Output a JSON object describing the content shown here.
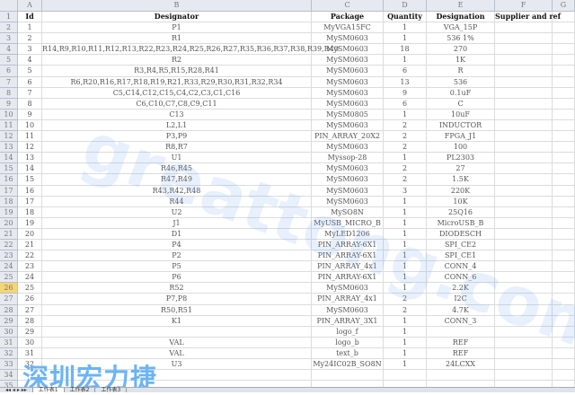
{
  "columns": [
    "A",
    "B",
    "C",
    "D",
    "E",
    "F",
    "G"
  ],
  "headers": [
    "Id",
    "Designator",
    "Package",
    "Quantity",
    "Designation",
    "Supplier and ref",
    ""
  ],
  "rows": [
    [
      "1",
      "P1",
      "MyVGA15FC",
      "1",
      "VGA_15P"
    ],
    [
      "2",
      "R1",
      "MySM0603",
      "1",
      "536 1%"
    ],
    [
      "3",
      "R14,R9,R10,R11,R12,R13,R22,R23,R24,R25,R26,R27,R35,R36,R37,R38,R39,R40",
      "MySM0603",
      "18",
      "270"
    ],
    [
      "4",
      "R2",
      "MySM0603",
      "1",
      "1K"
    ],
    [
      "5",
      "R3,R4,R5,R15,R28,R41",
      "MySM0603",
      "6",
      "R"
    ],
    [
      "6",
      "R6,R20,R16,R17,R18,R19,R21,R33,R29,R30,R31,R32,R34",
      "MySM0603",
      "13",
      "536"
    ],
    [
      "7",
      "C5,C14,C12,C15,C4,C2,C3,C1,C16",
      "MySM0603",
      "9",
      "0.1uF"
    ],
    [
      "8",
      "C6,C10,C7,C8,C9,C11",
      "MySM0603",
      "6",
      "C"
    ],
    [
      "9",
      "C13",
      "MySM0805",
      "1",
      "10uF"
    ],
    [
      "10",
      "L2,L1",
      "MySM0603",
      "2",
      "INDUCTOR"
    ],
    [
      "11",
      "P3,P9",
      "PIN_ARRAY_20X2",
      "2",
      "FPGA_J1"
    ],
    [
      "12",
      "R8,R7",
      "MySM0603",
      "2",
      "100"
    ],
    [
      "13",
      "U1",
      "Myssop-28",
      "1",
      "PL2303"
    ],
    [
      "14",
      "R46,R45",
      "MySM0603",
      "2",
      "27"
    ],
    [
      "15",
      "R47,R49",
      "MySM0603",
      "2",
      "1.5K"
    ],
    [
      "16",
      "R43,R42,R48",
      "MySM0603",
      "3",
      "220K"
    ],
    [
      "17",
      "R44",
      "MySM0603",
      "1",
      "10K"
    ],
    [
      "18",
      "U2",
      "MySO8N",
      "1",
      "25Q16"
    ],
    [
      "19",
      "J1",
      "MyUSB_MICRO_B",
      "1",
      "MicroUSB_B"
    ],
    [
      "20",
      "D1",
      "MyLED1206",
      "1",
      "DIODESCH"
    ],
    [
      "21",
      "P4",
      "PIN_ARRAY-6X1",
      "1",
      "SPI_CE2"
    ],
    [
      "22",
      "P2",
      "PIN_ARRAY-6X1",
      "1",
      "SPI_CE1"
    ],
    [
      "23",
      "P5",
      "PIN_ARRAY_4x1",
      "1",
      "CONN_4"
    ],
    [
      "24",
      "P6",
      "PIN_ARRAY-6X1",
      "1",
      "CONN_6"
    ],
    [
      "25",
      "R52",
      "MySM0603",
      "1",
      "2.2K"
    ],
    [
      "26",
      "P7,P8",
      "PIN_ARRAY_4x1",
      "2",
      "I2C"
    ],
    [
      "27",
      "R50,R51",
      "MySM0603",
      "2",
      "4.7K"
    ],
    [
      "28",
      "K1",
      "PIN_ARRAY_3X1",
      "1",
      "CONN_3"
    ],
    [
      "29",
      "",
      "logo_f",
      "1",
      ""
    ],
    [
      "30",
      "VAL",
      "logo_b",
      "1",
      "REF"
    ],
    [
      "31",
      "VAL",
      "text_b",
      "1",
      "REF"
    ],
    [
      "32",
      "U3",
      "My24IC02B_SO8N",
      "1",
      "24LCXX"
    ]
  ],
  "selected_row": 26,
  "extra_rows": [
    34,
    35
  ],
  "sheet_tabs": [
    "工作表1",
    "工作表2",
    "工作表3"
  ],
  "watermark": "greattong.com",
  "logo": "深圳宏力捷",
  "colors": {
    "header_bg": "#e6eaf0",
    "selected_row_header": "#f8d573",
    "watermark": "#6cb4f4"
  }
}
